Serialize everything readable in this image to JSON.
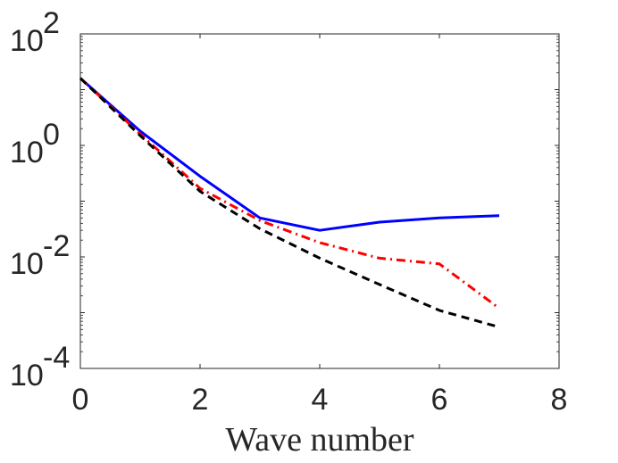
{
  "chart_data": {
    "type": "line",
    "title": "",
    "xlabel": "Wave number",
    "ylabel": "",
    "xlim": [
      0,
      8
    ],
    "ylim_log10": [
      -4,
      2
    ],
    "yscale": "log",
    "xticks": [
      0,
      2,
      4,
      6,
      8
    ],
    "xtick_labels": [
      "0",
      "2",
      "4",
      "6",
      "8"
    ],
    "yticks": [
      {
        "exp": 2,
        "base": "10",
        "power": "2"
      },
      {
        "exp": 0,
        "base": "10",
        "power": "0"
      },
      {
        "exp": -2,
        "base": "10",
        "power": "-2"
      },
      {
        "exp": -4,
        "base": "10",
        "power": "-4"
      }
    ],
    "x": [
      0,
      1,
      2,
      3,
      4,
      5,
      6,
      7
    ],
    "series": [
      {
        "name": "blue-solid",
        "color": "#0000ff",
        "style": "solid",
        "values": [
          16,
          1.8,
          0.28,
          0.05,
          0.03,
          0.042,
          0.05,
          0.055
        ]
      },
      {
        "name": "red-dashdot",
        "color": "#ff0000",
        "style": "dashdot",
        "values": [
          16,
          1.6,
          0.17,
          0.045,
          0.018,
          0.0095,
          0.0075,
          0.0012
        ]
      },
      {
        "name": "black-dashed",
        "color": "#000000",
        "style": "dashed",
        "values": [
          16,
          1.5,
          0.15,
          0.032,
          0.0095,
          0.0032,
          0.0011,
          0.00055
        ]
      }
    ]
  }
}
